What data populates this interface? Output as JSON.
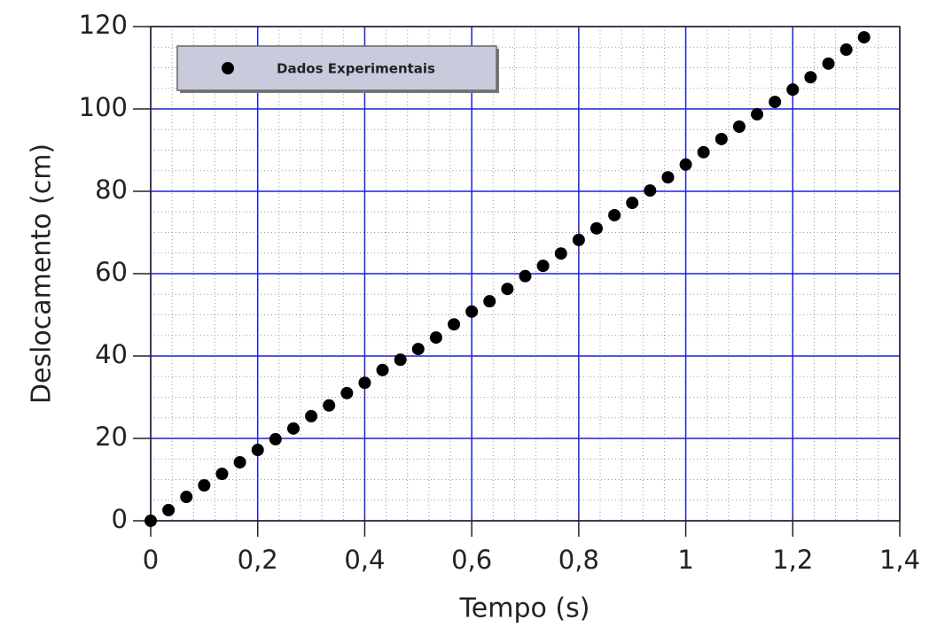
{
  "chart_data": {
    "type": "scatter",
    "x_label": "Tempo (s)",
    "y_label": "Deslocamento (cm)",
    "series": [
      {
        "name": "Dados Experimentais",
        "color": "#000000",
        "x": [
          0,
          0.0333,
          0.0667,
          0.1,
          0.1333,
          0.1667,
          0.2,
          0.2333,
          0.2667,
          0.3,
          0.3333,
          0.3667,
          0.4,
          0.4333,
          0.4667,
          0.5,
          0.5333,
          0.5667,
          0.6,
          0.6333,
          0.6667,
          0.7,
          0.7333,
          0.7667,
          0.8,
          0.8333,
          0.8667,
          0.9,
          0.9333,
          0.9667,
          1,
          1.0333,
          1.0667,
          1.1,
          1.1333,
          1.1667,
          1.2,
          1.2333,
          1.2667,
          1.3,
          1.3333
        ],
        "values": [
          0,
          2.6,
          5.8,
          8.6,
          11.4,
          14.2,
          17.2,
          19.8,
          22.4,
          25.4,
          28.0,
          31.0,
          33.5,
          36.6,
          39.1,
          41.7,
          44.5,
          47.7,
          50.8,
          53.3,
          56.3,
          59.4,
          61.9,
          64.9,
          68.2,
          71.0,
          74.2,
          77.2,
          80.2,
          83.4,
          86.5,
          89.5,
          92.7,
          95.7,
          98.7,
          101.7,
          104.7,
          107.7,
          111.0,
          114.4,
          117.4
        ]
      }
    ],
    "xlim": [
      0,
      1.4
    ],
    "xticks": [
      0,
      {
        "value": 0.2,
        "label": "0,2"
      },
      {
        "value": 0.4,
        "label": "0,4"
      },
      {
        "value": 0.6,
        "label": "0,6"
      },
      {
        "value": 0.8,
        "label": "0,8"
      },
      1,
      {
        "value": 1.2,
        "label": "1,2"
      },
      {
        "value": 1.4,
        "label": "1,4"
      }
    ],
    "ylim": [
      0,
      120
    ],
    "yticks": [
      0,
      20,
      40,
      60,
      80,
      100,
      120
    ],
    "grid": true,
    "grid_color": "#1f1fdd",
    "minor_divisions": {
      "x": 5,
      "y": 4
    },
    "legend": "upper left"
  }
}
